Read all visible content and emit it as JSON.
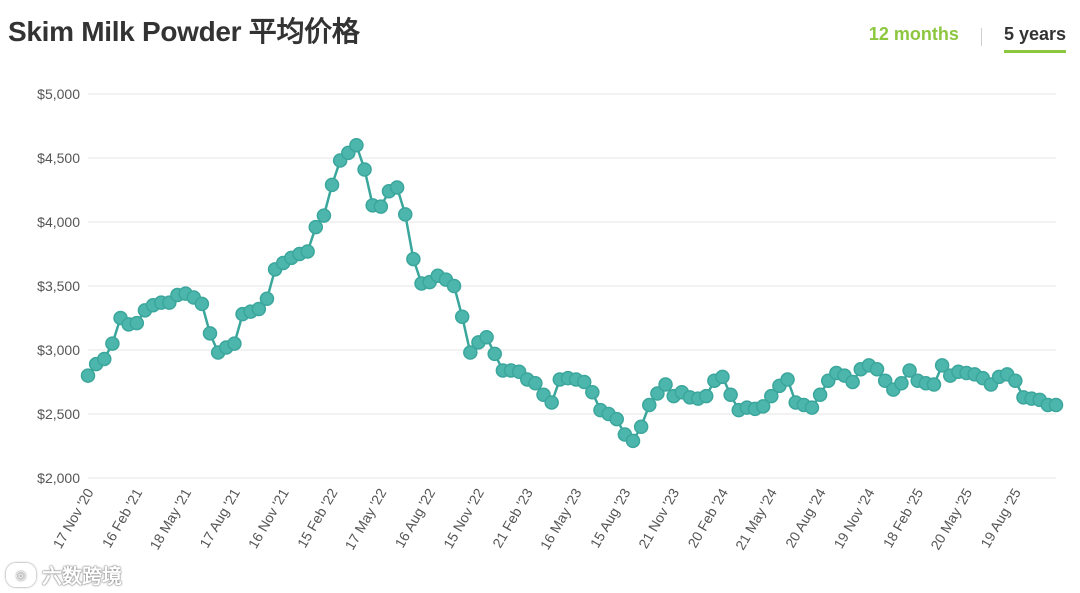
{
  "title": "Skim Milk Powder 平均价格",
  "tabs": [
    {
      "label": "12 months",
      "active": false
    },
    {
      "label": "5 years",
      "active": true
    }
  ],
  "watermark": "六数跨境",
  "colors": {
    "line": "#3aa69c",
    "marker_fill": "#4db6ac",
    "accent": "#8dc63f",
    "grid": "#e6e6e6"
  },
  "chart_data": {
    "type": "line",
    "ylim": [
      2000,
      5000
    ],
    "yticks": [
      2000,
      2500,
      3000,
      3500,
      4000,
      4500,
      5000
    ],
    "ytick_labels": [
      "$2,000",
      "$2,500",
      "$3,000",
      "$3,500",
      "$4,000",
      "$4,500",
      "$5,000"
    ],
    "xtick_labels": [
      "17 Nov '20",
      "16 Feb '21",
      "18 May '21",
      "17 Aug '21",
      "16 Nov '21",
      "15 Feb '22",
      "17 May '22",
      "16 Aug '22",
      "15 Nov '22",
      "21 Feb '23",
      "16 May '23",
      "15 Aug '23",
      "21 Nov '23",
      "20 Feb '24",
      "21 May '24",
      "20 Aug '24",
      "19 Nov '24",
      "18 Feb '25",
      "20 May '25",
      "19 Aug '25"
    ],
    "xtick_positions": [
      0,
      6,
      12,
      18,
      24,
      30,
      36,
      42,
      48,
      54,
      60,
      66,
      72,
      78,
      84,
      90,
      96,
      102,
      108,
      114
    ],
    "series": [
      {
        "name": "",
        "values": [
          2800,
          2890,
          2930,
          3050,
          3250,
          3200,
          3210,
          3310,
          3350,
          3370,
          3370,
          3430,
          3440,
          3410,
          3360,
          3130,
          2980,
          3020,
          3050,
          3280,
          3300,
          3320,
          3400,
          3630,
          3680,
          3720,
          3750,
          3770,
          3960,
          4050,
          4290,
          4480,
          4540,
          4600,
          4410,
          4130,
          4120,
          4240,
          4270,
          4060,
          3710,
          3520,
          3530,
          3580,
          3550,
          3500,
          3260,
          2980,
          3060,
          3100,
          2970,
          2840,
          2840,
          2830,
          2770,
          2740,
          2650,
          2590,
          2770,
          2780,
          2770,
          2750,
          2670,
          2530,
          2500,
          2460,
          2340,
          2290,
          2400,
          2570,
          2660,
          2730,
          2640,
          2670,
          2630,
          2620,
          2640,
          2760,
          2790,
          2650,
          2530,
          2550,
          2540,
          2560,
          2640,
          2720,
          2770,
          2590,
          2570,
          2550,
          2650,
          2760,
          2820,
          2800,
          2750,
          2850,
          2880,
          2850,
          2760,
          2690,
          2740,
          2840,
          2760,
          2740,
          2730,
          2880,
          2800,
          2830,
          2820,
          2810,
          2780,
          2730,
          2790,
          2810,
          2760,
          2630,
          2620,
          2610,
          2570,
          2570
        ]
      }
    ],
    "grid": "horizontal",
    "legend": "none"
  }
}
